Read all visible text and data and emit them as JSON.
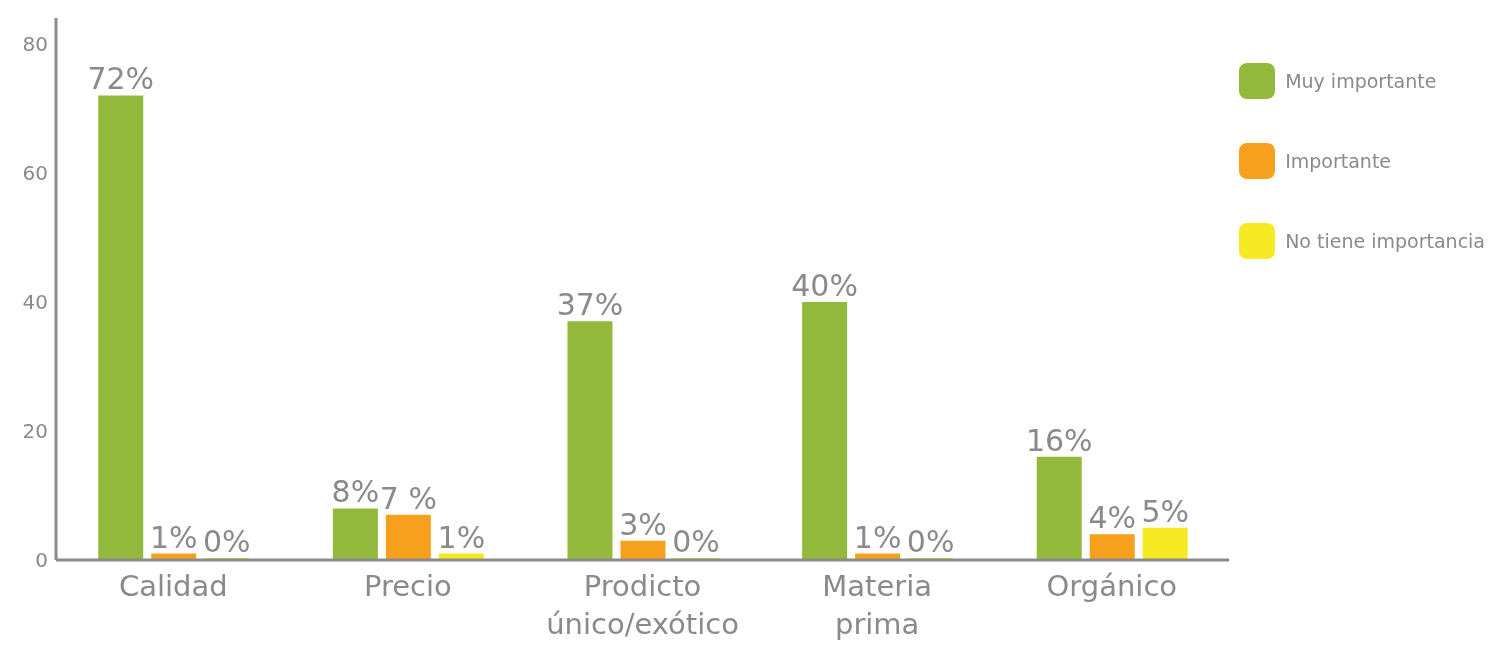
{
  "chart_data": {
    "type": "bar",
    "categories": [
      "Calidad",
      "Precio",
      "Prodicto único/exótico",
      "Materia prima",
      "Orgánico"
    ],
    "series": [
      {
        "name": "Muy importante",
        "color": "#93b93c",
        "values": [
          72,
          8,
          37,
          40,
          16
        ],
        "value_labels": [
          "72%",
          "8%",
          "37%",
          "40%",
          "16%"
        ]
      },
      {
        "name": "Importante",
        "color": "#f7a01d",
        "values": [
          1,
          7,
          3,
          1,
          4
        ],
        "value_labels": [
          "1%",
          "7 %",
          "3%",
          "1%",
          "4%"
        ]
      },
      {
        "name": "No tiene importancia",
        "color": "#f5e922",
        "values": [
          0,
          1,
          0,
          0,
          5
        ],
        "value_labels": [
          "0%",
          "1%",
          "0%",
          "0%",
          "5%"
        ]
      }
    ],
    "ylim": [
      0,
      84
    ],
    "yticks": [
      0,
      20,
      40,
      60,
      80
    ],
    "grid": false,
    "legend": "top right"
  }
}
